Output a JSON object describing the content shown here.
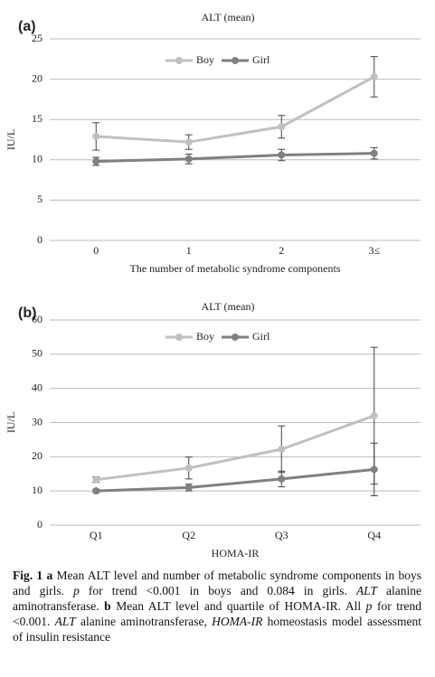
{
  "chart_data": [
    {
      "type": "line",
      "panel_label": "(a)",
      "title": "ALT (mean)",
      "ylabel": "IU/L",
      "xlabel": "The number of metabolic syndrome components",
      "categories": [
        "0",
        "1",
        "2",
        "3≤"
      ],
      "series": [
        {
          "name": "Boy",
          "color": "#c0c0c0",
          "values": [
            12.9,
            12.2,
            14.1,
            20.3
          ],
          "errors": [
            1.7,
            0.9,
            1.4,
            2.5
          ]
        },
        {
          "name": "Girl",
          "color": "#808080",
          "values": [
            9.8,
            10.1,
            10.6,
            10.8
          ],
          "errors": [
            0.5,
            0.6,
            0.7,
            0.7
          ]
        }
      ],
      "ylim": [
        0,
        25
      ],
      "yticks": [
        0,
        5,
        10,
        15,
        20,
        25
      ],
      "grid": true,
      "legend": "top"
    },
    {
      "type": "line",
      "panel_label": "(b)",
      "title": "ALT (mean)",
      "ylabel": "IU/L",
      "xlabel": "HOMA-IR",
      "categories": [
        "Q1",
        "Q2",
        "Q3",
        "Q4"
      ],
      "series": [
        {
          "name": "Boy",
          "color": "#c0c0c0",
          "values": [
            13.3,
            16.7,
            22.2,
            32
          ],
          "errors": [
            0.8,
            3.2,
            6.8,
            20
          ]
        },
        {
          "name": "Girl",
          "color": "#808080",
          "values": [
            10,
            11,
            13.5,
            16.3
          ],
          "errors": [
            0.5,
            1,
            2.3,
            7.7
          ]
        }
      ],
      "ylim": [
        0,
        60
      ],
      "yticks": [
        0,
        10,
        20,
        30,
        40,
        50,
        60
      ],
      "grid": true,
      "legend": "top"
    }
  ],
  "caption": {
    "runs": [
      {
        "text": "Fig. 1 a",
        "style": "bold"
      },
      {
        "text": " Mean ALT level and number of metabolic syndrome components in boys and girls. ",
        "style": "normal"
      },
      {
        "text": "p",
        "style": "italic"
      },
      {
        "text": " for trend <0.001 in boys and 0.084 in girls. ",
        "style": "normal"
      },
      {
        "text": "ALT",
        "style": "italic"
      },
      {
        "text": " alanine aminotransferase. ",
        "style": "normal"
      },
      {
        "text": "b",
        "style": "bold"
      },
      {
        "text": " Mean ALT level and quartile of HOMA-IR. All ",
        "style": "normal"
      },
      {
        "text": "p",
        "style": "italic"
      },
      {
        "text": " for trend <0.001. ",
        "style": "normal"
      },
      {
        "text": "ALT",
        "style": "italic"
      },
      {
        "text": " alanine aminotransferase, ",
        "style": "normal"
      },
      {
        "text": "HOMA-IR",
        "style": "italic"
      },
      {
        "text": " homeostasis model assessment of insulin resistance",
        "style": "normal"
      }
    ]
  }
}
